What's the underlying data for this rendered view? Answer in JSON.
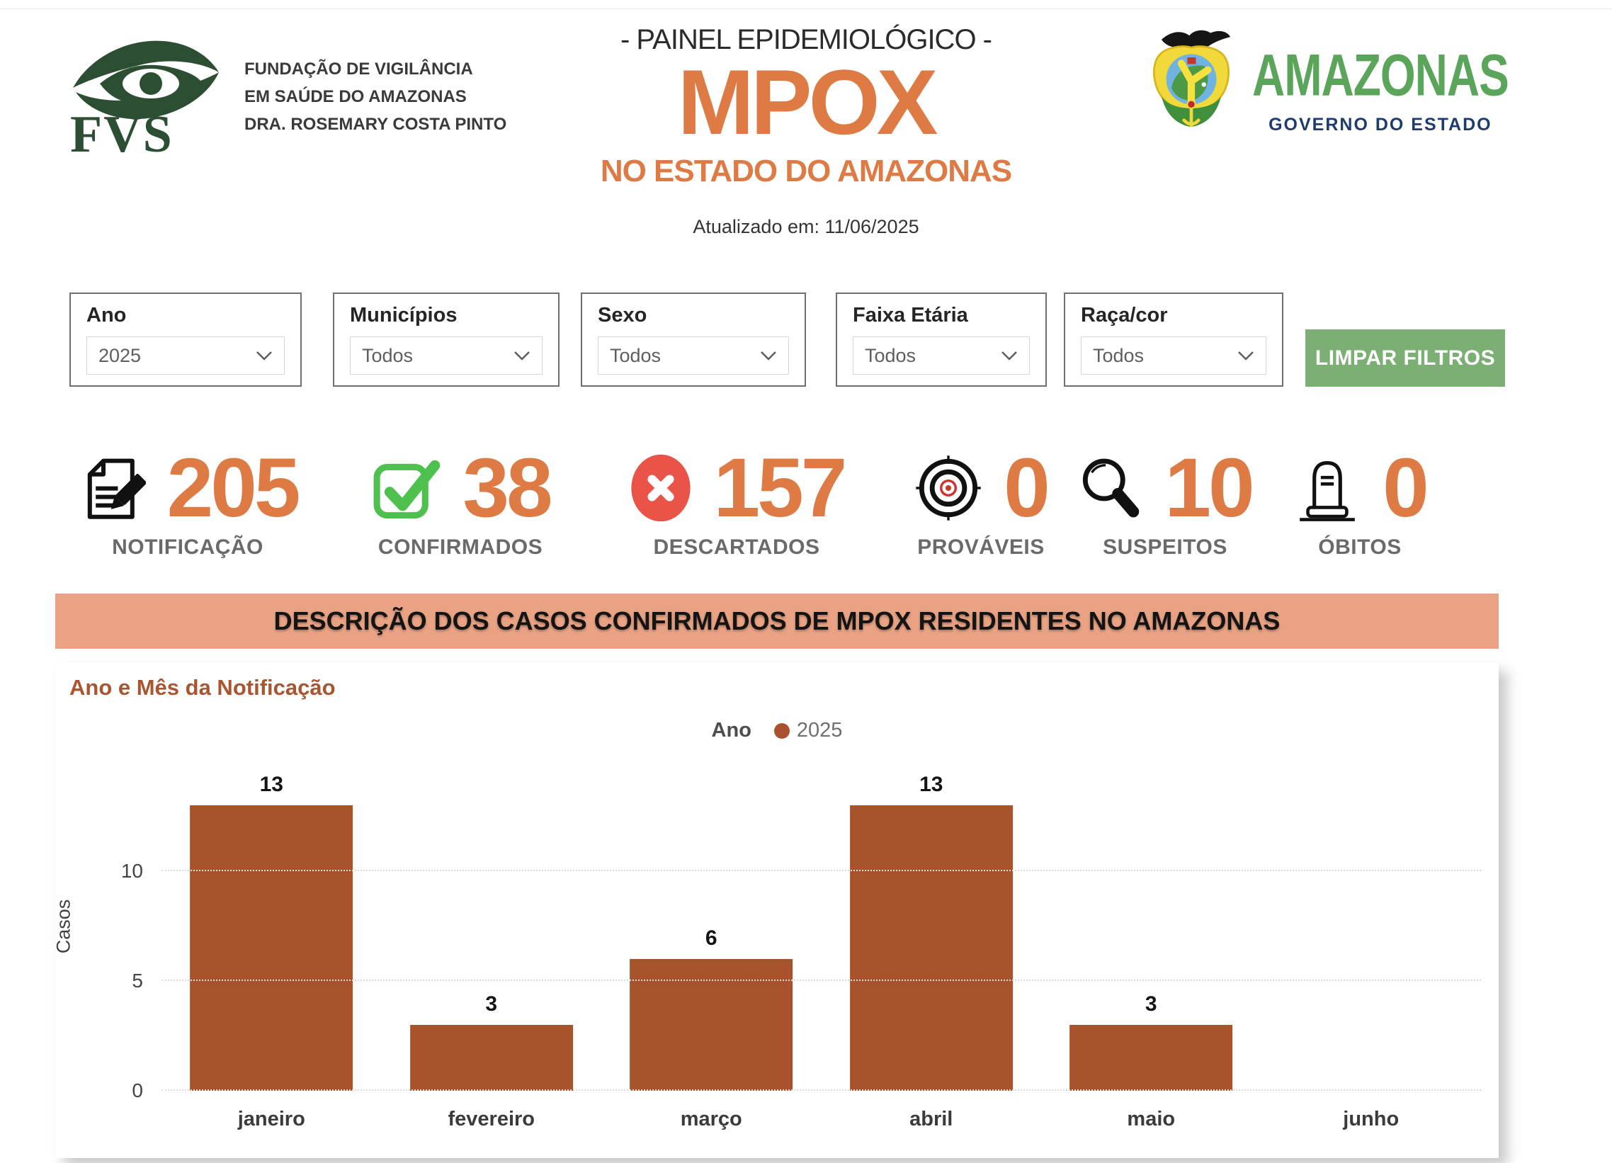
{
  "header": {
    "brand_left": {
      "logo_text": "FVS",
      "org_lines": [
        "FUNDAÇÃO DE VIGILÂNCIA",
        "EM SAÚDE DO AMAZONAS",
        "DRA. ROSEMARY COSTA PINTO"
      ]
    },
    "panel_label": "- PAINEL EPIDEMIOLÓGICO -",
    "title": "MPOX",
    "subtitle": "NO ESTADO DO AMAZONAS",
    "updated": "Atualizado em: 11/06/2025",
    "brand_right": {
      "name": "AMAZONAS",
      "tagline": "GOVERNO DO ESTADO"
    }
  },
  "filters": {
    "items": [
      {
        "label": "Ano",
        "value": "2025"
      },
      {
        "label": "Municípios",
        "value": "Todos"
      },
      {
        "label": "Sexo",
        "value": "Todos"
      },
      {
        "label": "Faixa Etária",
        "value": "Todos"
      },
      {
        "label": "Raça/cor",
        "value": "Todos"
      }
    ],
    "clear_label": "LIMPAR FILTROS"
  },
  "kpis": [
    {
      "icon": "notification-document-icon",
      "value": "205",
      "label": "NOTIFICAÇÃO"
    },
    {
      "icon": "confirmed-check-icon",
      "value": "38",
      "label": "CONFIRMADOS"
    },
    {
      "icon": "discarded-x-icon",
      "value": "157",
      "label": "DESCARTADOS"
    },
    {
      "icon": "probable-target-icon",
      "value": "0",
      "label": "PROVÁVEIS"
    },
    {
      "icon": "suspect-magnifier-icon",
      "value": "10",
      "label": "SUSPEITOS"
    },
    {
      "icon": "deaths-tombstone-icon",
      "value": "0",
      "label": "ÓBITOS"
    }
  ],
  "banner": {
    "text": "DESCRIÇÃO DOS CASOS CONFIRMADOS DE MPOX RESIDENTES NO AMAZONAS"
  },
  "chart_data": {
    "type": "bar",
    "title": "Ano e Mês da Notificação",
    "legend": {
      "title": "Ano",
      "series_label": "2025",
      "position": "top-center"
    },
    "categories": [
      "janeiro",
      "fevereiro",
      "março",
      "abril",
      "maio",
      "junho"
    ],
    "values": [
      13,
      3,
      6,
      13,
      3,
      null
    ],
    "ylabel": "Casos",
    "yticks": [
      0,
      5,
      10
    ],
    "ylim": [
      0,
      15
    ],
    "grid": "dotted horizontal",
    "bar_color": "#a9532c"
  },
  "colors": {
    "accent_orange": "#de7a43",
    "bar_sienna": "#a9532c",
    "banner_salmon": "#e9a384",
    "button_green": "#7caf74",
    "check_green": "#4ec04e",
    "discard_red": "#ea5348",
    "fvs_green": "#2c4f33",
    "amazonas_green": "#5ba55b",
    "governo_navy": "#1e3b70"
  }
}
